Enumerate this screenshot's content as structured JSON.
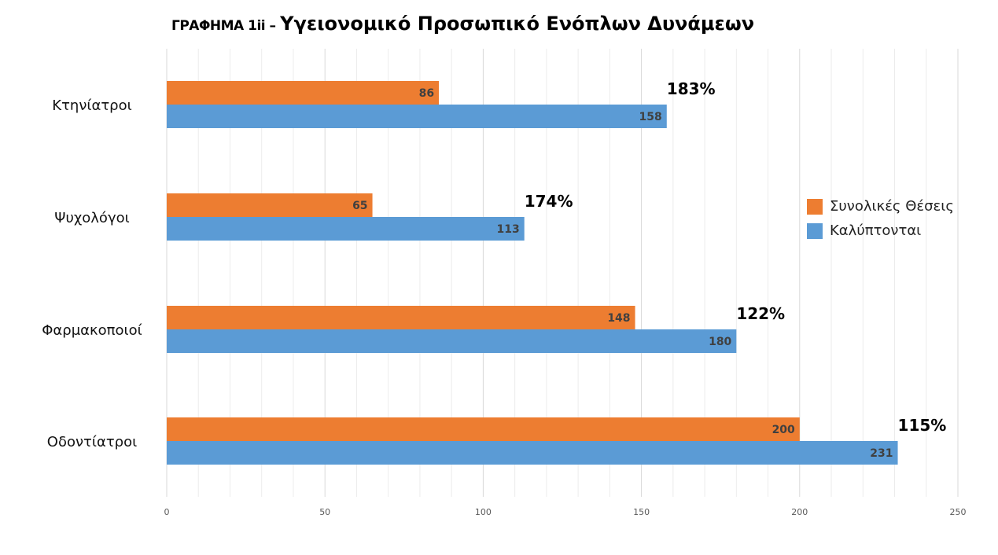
{
  "chart_data": {
    "type": "bar",
    "orientation": "horizontal",
    "title_prefix": "ΓΡΑΦΗΜΑ 1ii –",
    "title": "Υγειονομικό Προσωπικό Ενόπλων Δυνάμεων",
    "categories": [
      "Κτηνίατροι",
      "Ψυχολόγοι",
      "Φαρμακοποιοί",
      "Οδοντίατροι"
    ],
    "series": [
      {
        "name": "Συνολικές Θέσεις",
        "color": "#ED7D31",
        "values": [
          86,
          65,
          148,
          200
        ]
      },
      {
        "name": "Καλύπτονται",
        "color": "#5B9BD5",
        "values": [
          158,
          113,
          180,
          231
        ]
      }
    ],
    "annotations": [
      "183%",
      "174%",
      "122%",
      "115%"
    ],
    "xlim": [
      0,
      250
    ],
    "xticks": [
      0,
      50,
      100,
      150,
      200,
      250
    ],
    "grid": true,
    "legend_position": "right"
  }
}
